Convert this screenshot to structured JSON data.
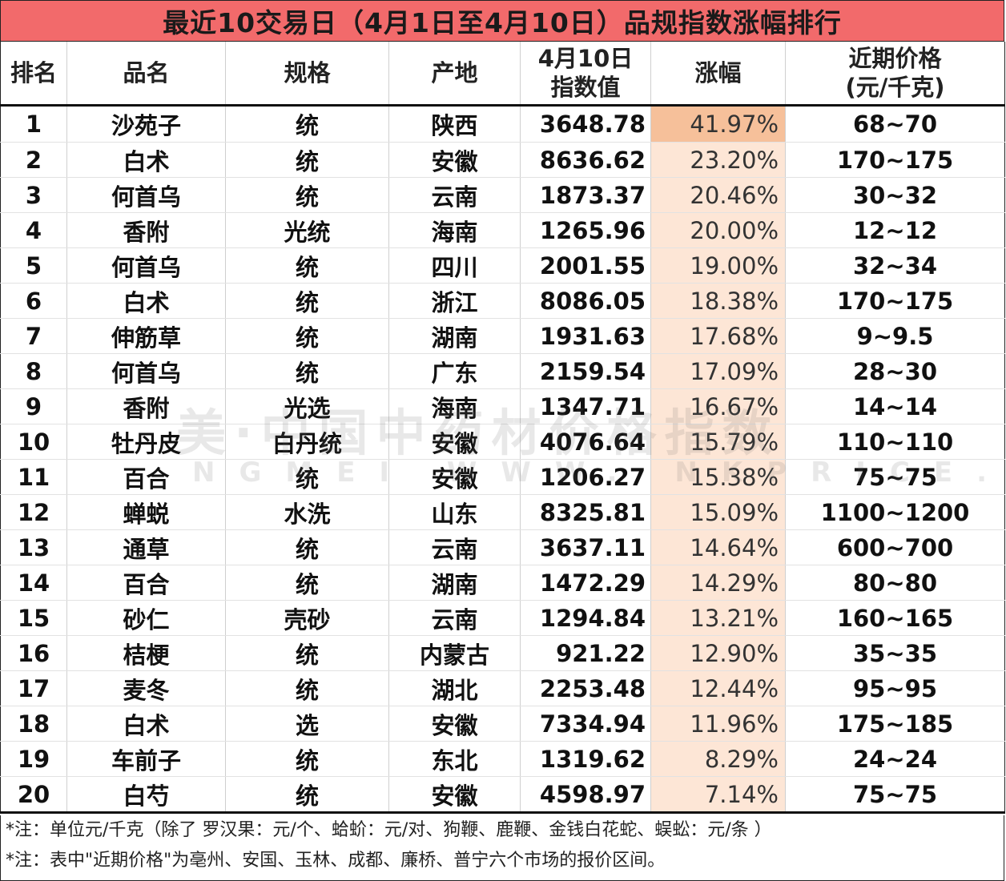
{
  "title": "最近10交易日（4月1日至4月10日）品规指数涨幅排行",
  "headers": {
    "rank": "排名",
    "name": "品名",
    "spec": "规格",
    "origin": "产地",
    "index_line1": "4月10日",
    "index_line2": "指数值",
    "change": "涨幅",
    "price_line1": "近期价格",
    "price_line2": "(元/千克)"
  },
  "rows": [
    {
      "rank": "1",
      "name": "沙苑子",
      "spec": "统",
      "origin": "陕西",
      "index": "3648.78",
      "change": "41.97%",
      "price": "68~70"
    },
    {
      "rank": "2",
      "name": "白术",
      "spec": "统",
      "origin": "安徽",
      "index": "8636.62",
      "change": "23.20%",
      "price": "170~175"
    },
    {
      "rank": "3",
      "name": "何首乌",
      "spec": "统",
      "origin": "云南",
      "index": "1873.37",
      "change": "20.46%",
      "price": "30~32"
    },
    {
      "rank": "4",
      "name": "香附",
      "spec": "光统",
      "origin": "海南",
      "index": "1265.96",
      "change": "20.00%",
      "price": "12~12"
    },
    {
      "rank": "5",
      "name": "何首乌",
      "spec": "统",
      "origin": "四川",
      "index": "2001.55",
      "change": "19.00%",
      "price": "32~34"
    },
    {
      "rank": "6",
      "name": "白术",
      "spec": "统",
      "origin": "浙江",
      "index": "8086.05",
      "change": "18.38%",
      "price": "170~175"
    },
    {
      "rank": "7",
      "name": "伸筋草",
      "spec": "统",
      "origin": "湖南",
      "index": "1931.63",
      "change": "17.68%",
      "price": "9~9.5"
    },
    {
      "rank": "8",
      "name": "何首乌",
      "spec": "统",
      "origin": "广东",
      "index": "2159.54",
      "change": "17.09%",
      "price": "28~30"
    },
    {
      "rank": "9",
      "name": "香附",
      "spec": "光选",
      "origin": "海南",
      "index": "1347.71",
      "change": "16.67%",
      "price": "14~14"
    },
    {
      "rank": "10",
      "name": "牡丹皮",
      "spec": "白丹统",
      "origin": "安徽",
      "index": "4076.64",
      "change": "15.79%",
      "price": "110~110"
    },
    {
      "rank": "11",
      "name": "百合",
      "spec": "统",
      "origin": "安徽",
      "index": "1206.27",
      "change": "15.38%",
      "price": "75~75"
    },
    {
      "rank": "12",
      "name": "蝉蜕",
      "spec": "水洗",
      "origin": "山东",
      "index": "8325.81",
      "change": "15.09%",
      "price": "1100~1200"
    },
    {
      "rank": "13",
      "name": "通草",
      "spec": "统",
      "origin": "云南",
      "index": "3637.11",
      "change": "14.64%",
      "price": "600~700"
    },
    {
      "rank": "14",
      "name": "百合",
      "spec": "统",
      "origin": "湖南",
      "index": "1472.29",
      "change": "14.29%",
      "price": "80~80"
    },
    {
      "rank": "15",
      "name": "砂仁",
      "spec": "壳砂",
      "origin": "云南",
      "index": "1294.84",
      "change": "13.21%",
      "price": "160~165"
    },
    {
      "rank": "16",
      "name": "桔梗",
      "spec": "统",
      "origin": "内蒙古",
      "index": "921.22",
      "change": "12.90%",
      "price": "35~35"
    },
    {
      "rank": "17",
      "name": "麦冬",
      "spec": "统",
      "origin": "湖北",
      "index": "2253.48",
      "change": "12.44%",
      "price": "95~95"
    },
    {
      "rank": "18",
      "name": "白术",
      "spec": "选",
      "origin": "安徽",
      "index": "7334.94",
      "change": "11.96%",
      "price": "175~185"
    },
    {
      "rank": "19",
      "name": "车前子",
      "spec": "统",
      "origin": "东北",
      "index": "1319.62",
      "change": "8.29%",
      "price": "24~24"
    },
    {
      "rank": "20",
      "name": "白芍",
      "spec": "统",
      "origin": "安徽",
      "index": "4598.97",
      "change": "7.14%",
      "price": "75~75"
    }
  ],
  "watermark": {
    "line1": "美·中国中药材价格指数",
    "line2": "NGMEI WWW. NKPRICE.COM"
  },
  "notes": [
    "*注：单位元/千克（除了 罗汉果：元/个、蛤蚧：元/对、狗鞭、鹿鞭、金钱白花蛇、蜈蚣：元/条 ）",
    "*注：表中\"近期价格\"为亳州、安国、玉林、成都、廉桥、普宁六个市场的报价区间。"
  ],
  "colors": {
    "title_bg": "#f26a6b",
    "change_top_bg": "#f6c09a",
    "change_bg": "#fde6d6"
  }
}
